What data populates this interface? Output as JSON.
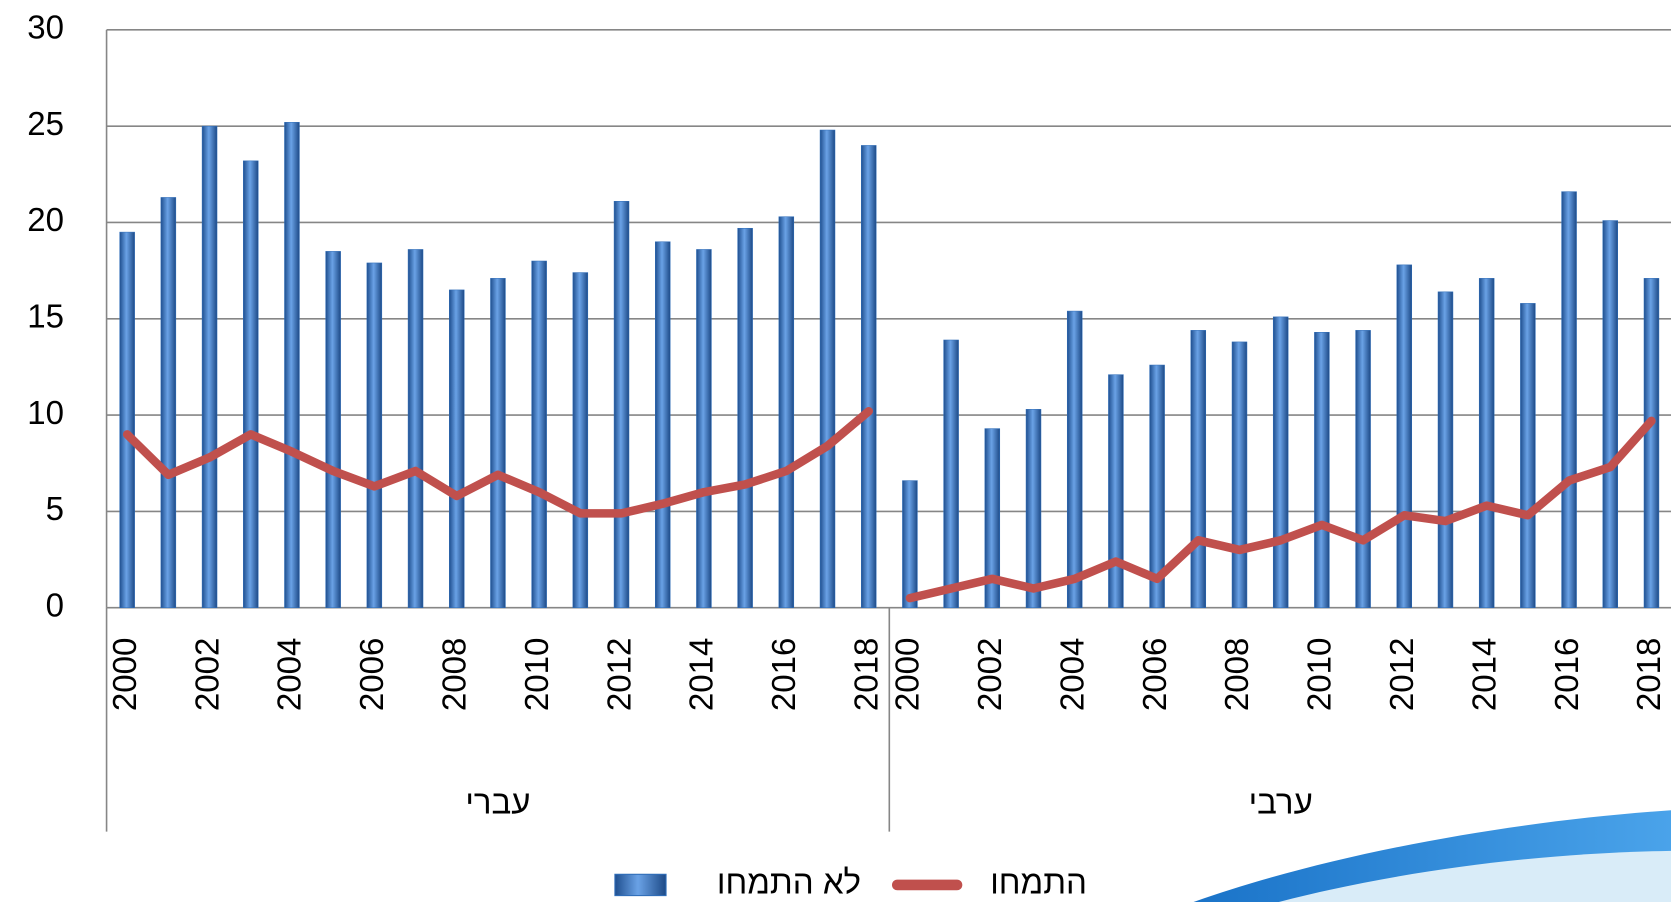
{
  "chart_data": {
    "type": "bar-line",
    "groups": [
      {
        "name": "עברי",
        "categories": [
          "2000",
          null,
          "2002",
          null,
          "2004",
          null,
          "2006",
          null,
          "2008",
          null,
          "2010",
          null,
          "2012",
          null,
          "2014",
          null,
          "2016",
          null,
          "2018"
        ]
      },
      {
        "name": "ערבי",
        "categories": [
          "2000",
          null,
          "2002",
          null,
          "2004",
          null,
          "2006",
          null,
          "2008",
          null,
          "2010",
          null,
          "2012",
          null,
          "2014",
          null,
          "2016",
          null,
          "2018"
        ]
      }
    ],
    "series": [
      {
        "name": "לא התמחו",
        "type": "bar",
        "color": "#2f6db8",
        "values": [
          19.5,
          21.3,
          25,
          23.2,
          25.2,
          18.5,
          17.9,
          18.6,
          16.5,
          17.1,
          18,
          17.4,
          21.1,
          19,
          18.6,
          19.7,
          20.3,
          24.8,
          24,
          6.6,
          13.9,
          9.3,
          10.3,
          15.4,
          12.1,
          12.6,
          14.4,
          13.8,
          15.1,
          14.3,
          14.4,
          17.8,
          16.4,
          17.1,
          15.8,
          21.6,
          20.1,
          17.1
        ]
      },
      {
        "name": "התמחו",
        "type": "line",
        "color": "#c0504d",
        "values": [
          9,
          6.9,
          7.8,
          9,
          8.1,
          7.1,
          6.3,
          7.1,
          5.8,
          6.9,
          6,
          4.9,
          4.9,
          5.4,
          6,
          6.4,
          7.1,
          8.4,
          10.2,
          0.5,
          1,
          1.5,
          1,
          1.5,
          2.4,
          1.5,
          3.5,
          3,
          3.5,
          4.3,
          3.5,
          4.8,
          4.5,
          5.3,
          4.8,
          6.6,
          7.3,
          9.7
        ]
      }
    ],
    "ylim": [
      0,
      30
    ],
    "yticks": [
      0,
      5,
      10,
      15,
      20,
      25,
      30
    ],
    "grid": true,
    "legend": "bottom"
  }
}
